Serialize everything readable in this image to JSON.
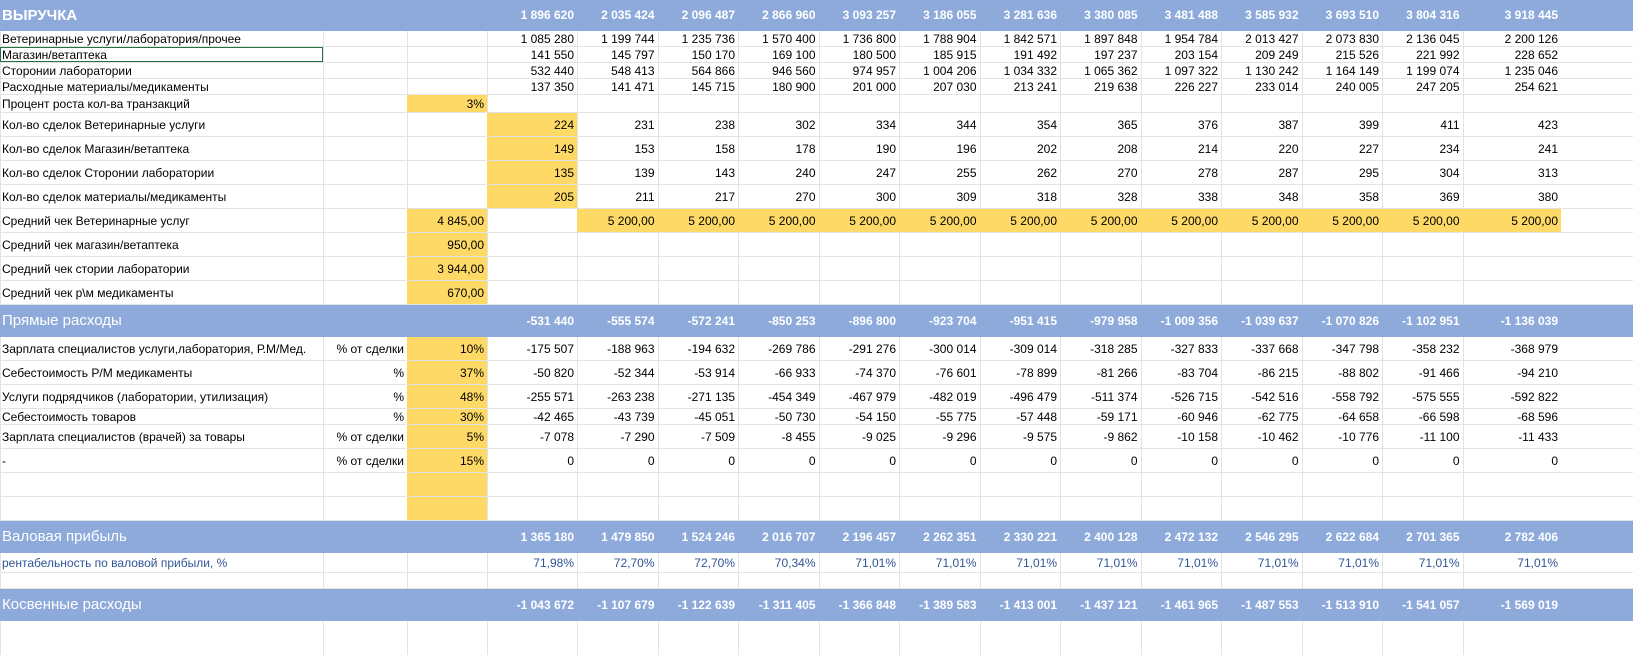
{
  "months": 13,
  "rows": [
    {
      "id": "revenue",
      "label": "ВЫРУЧКА",
      "style": "band-bold",
      "values": [
        "1 896 620",
        "2 035 424",
        "2 096 487",
        "2 866 960",
        "3 093 257",
        "3 186 055",
        "3 281 636",
        "3 380 085",
        "3 481 488",
        "3 585 932",
        "3 693 510",
        "3 804 316",
        "3 918 445"
      ]
    },
    {
      "id": "vet-services",
      "label": "Ветеринарные услуги/лаборатория/прочее",
      "values": [
        "1 085 280",
        "1 199 744",
        "1 235 736",
        "1 570 400",
        "1 736 800",
        "1 788 904",
        "1 842 571",
        "1 897 848",
        "1 954 784",
        "2 013 427",
        "2 073 830",
        "2 136 045",
        "2 200 126"
      ]
    },
    {
      "id": "shop",
      "label": "Магазин/ветаптека",
      "selected": true,
      "values": [
        "141 550",
        "145 797",
        "150 170",
        "169 100",
        "180 500",
        "185 915",
        "191 492",
        "197 237",
        "203 154",
        "209 249",
        "215 526",
        "221 992",
        "228 652"
      ]
    },
    {
      "id": "external-labs",
      "label": "Сторонии лаборатории",
      "values": [
        "532 440",
        "548 413",
        "564 866",
        "946 560",
        "974 957",
        "1 004 206",
        "1 034 332",
        "1 065 362",
        "1 097 322",
        "1 130 242",
        "1 164 149",
        "1 199 074",
        "1 235 046"
      ]
    },
    {
      "id": "consumables",
      "label": "Расходные материалы/медикаменты",
      "values": [
        "137 350",
        "141 471",
        "145 715",
        "180 900",
        "201 000",
        "207 030",
        "213 241",
        "219 638",
        "226 227",
        "233 014",
        "240 005",
        "247 205",
        "254 621"
      ]
    },
    {
      "id": "growth-rate",
      "label": "Процент роста кол-ва транзакций",
      "input": "3%",
      "input_yellow": true,
      "values": []
    },
    {
      "id": "deals-vet",
      "label": "Кол-во сделок Ветеринарные услуги",
      "first_yellow": true,
      "values": [
        "224",
        "231",
        "238",
        "302",
        "334",
        "344",
        "354",
        "365",
        "376",
        "387",
        "399",
        "411",
        "423"
      ]
    },
    {
      "id": "deals-shop",
      "label": "Кол-во сделок  Магазин/ветаптека",
      "first_yellow": true,
      "values": [
        "149",
        "153",
        "158",
        "178",
        "190",
        "196",
        "202",
        "208",
        "214",
        "220",
        "227",
        "234",
        "241"
      ]
    },
    {
      "id": "deals-labs",
      "label": "Кол-во сделок Сторонии лаборатории",
      "first_yellow": true,
      "values": [
        "135",
        "139",
        "143",
        "240",
        "247",
        "255",
        "262",
        "270",
        "278",
        "287",
        "295",
        "304",
        "313"
      ]
    },
    {
      "id": "deals-materials",
      "label": "Кол-во сделок материалы/медикаменты",
      "first_yellow": true,
      "values": [
        "205",
        "211",
        "217",
        "270",
        "300",
        "309",
        "318",
        "328",
        "338",
        "348",
        "358",
        "369",
        "380"
      ]
    },
    {
      "id": "avg-vet",
      "label": "Средний чек Ветеринарные услуг",
      "input": "4 845,00",
      "input_yellow": true,
      "all_yellow_from": 1,
      "values": [
        "",
        "5 200,00",
        "5 200,00",
        "5 200,00",
        "5 200,00",
        "5 200,00",
        "5 200,00",
        "5 200,00",
        "5 200,00",
        "5 200,00",
        "5 200,00",
        "5 200,00",
        "5 200,00"
      ]
    },
    {
      "id": "avg-shop",
      "label": "Средний чек магазин/ветаптека",
      "input": "950,00",
      "input_yellow": true,
      "values": []
    },
    {
      "id": "avg-labs",
      "label": "Средний чек стории лаборатории",
      "input": "3 944,00",
      "input_yellow": true,
      "values": []
    },
    {
      "id": "avg-meds",
      "label": "Средний чек р\\м медикаменты",
      "input": "670,00",
      "input_yellow": true,
      "values": []
    },
    {
      "id": "direct-costs",
      "label": "Прямые расходы",
      "style": "band",
      "values": [
        "-531 440",
        "-555 574",
        "-572 241",
        "-850 253",
        "-896 800",
        "-923 704",
        "-951 415",
        "-979 958",
        "-1 009 356",
        "-1 039 637",
        "-1 070 826",
        "-1 102 951",
        "-1 136 039"
      ]
    },
    {
      "id": "salary-specialists",
      "label": "Зарплата специалистов услуги,лаборатория, Р.М/Мед.",
      "unit": "% от сделки",
      "input": "10%",
      "input_yellow": true,
      "values": [
        "-175 507",
        "-188 963",
        "-194 632",
        "-269 786",
        "-291 276",
        "-300 014",
        "-309 014",
        "-318 285",
        "-327 833",
        "-337 668",
        "-347 798",
        "-358 232",
        "-368 979"
      ]
    },
    {
      "id": "cost-meds",
      "label": "Себестоимость Р/М медикаменты",
      "unit": "%",
      "input": "37%",
      "input_yellow": true,
      "values": [
        "-50 820",
        "-52 344",
        "-53 914",
        "-66 933",
        "-74 370",
        "-76 601",
        "-78 899",
        "-81 266",
        "-83 704",
        "-86 215",
        "-88 802",
        "-91 466",
        "-94 210"
      ]
    },
    {
      "id": "contractors",
      "label": "Услуги подрядчиков (лаборатории, утилизация)",
      "unit": "%",
      "input": "48%",
      "input_yellow": true,
      "values": [
        "-255 571",
        "-263 238",
        "-271 135",
        "-454 349",
        "-467 979",
        "-482 019",
        "-496 479",
        "-511 374",
        "-526 715",
        "-542 516",
        "-558 792",
        "-575 555",
        "-592 822"
      ]
    },
    {
      "id": "cost-goods",
      "label": "Себестоимость товаров",
      "unit": "%",
      "input": "30%",
      "input_yellow": true,
      "values": [
        "-42 465",
        "-43 739",
        "-45 051",
        "-50 730",
        "-54 150",
        "-55 775",
        "-57 448",
        "-59 171",
        "-60 946",
        "-62 775",
        "-64 658",
        "-66 598",
        "-68 596"
      ]
    },
    {
      "id": "salary-doctors",
      "label": "Зарплата специалистов (врачей) за товары",
      "unit": "% от сделки",
      "input": "5%",
      "input_yellow": true,
      "values": [
        "-7 078",
        "-7 290",
        "-7 509",
        "-8 455",
        "-9 025",
        "-9 296",
        "-9 575",
        "-9 862",
        "-10 158",
        "-10 462",
        "-10 776",
        "-11 100",
        "-11 433"
      ]
    },
    {
      "id": "dash-row",
      "label": "-",
      "unit": "% от сделки",
      "input": "15%",
      "input_yellow": true,
      "values": [
        "0",
        "0",
        "0",
        "0",
        "0",
        "0",
        "0",
        "0",
        "0",
        "0",
        "0",
        "0",
        "0"
      ]
    },
    {
      "id": "blank-1",
      "label": "",
      "input": "",
      "input_yellow": true,
      "values": []
    },
    {
      "id": "blank-2",
      "label": "",
      "input": "",
      "input_yellow": true,
      "values": []
    },
    {
      "id": "gross-profit",
      "label": "Валовая прибыль",
      "style": "band",
      "values": [
        "1 365 180",
        "1 479 850",
        "1 524 246",
        "2 016 707",
        "2 196 457",
        "2 262 351",
        "2 330 221",
        "2 400 128",
        "2 472 132",
        "2 546 295",
        "2 622 684",
        "2 701 365",
        "2 782 406"
      ]
    },
    {
      "id": "gross-margin",
      "label": "рентабельность по валовой прибыли, %",
      "style": "blue",
      "values": [
        "71,98%",
        "72,70%",
        "72,70%",
        "70,34%",
        "71,01%",
        "71,01%",
        "71,01%",
        "71,01%",
        "71,01%",
        "71,01%",
        "71,01%",
        "71,01%",
        "71,01%"
      ]
    },
    {
      "id": "blank-3",
      "label": "",
      "values": []
    },
    {
      "id": "indirect-costs",
      "label": "Косвенные расходы",
      "style": "band",
      "values": [
        "-1 043 672",
        "-1 107 679",
        "-1 122 639",
        "-1 311 405",
        "-1 366 848",
        "-1 389 583",
        "-1 413 001",
        "-1 437 121",
        "-1 461 965",
        "-1 487 553",
        "-1 513 910",
        "-1 541 057",
        "-1 569 019"
      ]
    }
  ]
}
